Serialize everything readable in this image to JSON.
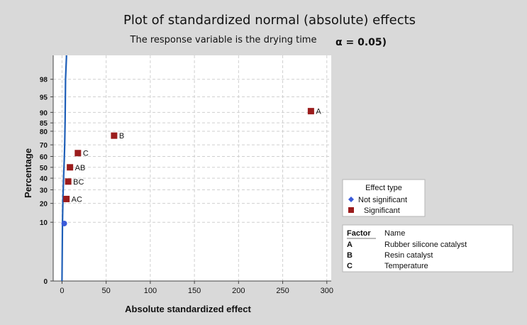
{
  "chart_data": {
    "type": "scatter",
    "title": "Plot of standardized normal (absolute) effects",
    "subtitle": "The response variable is the drying time",
    "alpha_label": "α = 0.05)",
    "xlabel": "Absolute standardized effect",
    "ylabel": "Percentage",
    "xlim": [
      -10,
      305
    ],
    "x_ticks": [
      0,
      50,
      100,
      150,
      200,
      250,
      300
    ],
    "y_ticks": [
      0,
      10,
      20,
      30,
      40,
      50,
      60,
      70,
      80,
      85,
      90,
      95,
      98
    ],
    "y_scale": "normal-probability",
    "grid": true,
    "points": [
      {
        "label": "",
        "x": 2.5,
        "y": 9.5,
        "status": "Not significant"
      },
      {
        "label": "AC",
        "x": 5,
        "y": 23,
        "status": "Significant"
      },
      {
        "label": "BC",
        "x": 7,
        "y": 37,
        "status": "Significant"
      },
      {
        "label": "AB",
        "x": 9,
        "y": 50,
        "status": "Significant"
      },
      {
        "label": "C",
        "x": 18,
        "y": 63,
        "status": "Significant"
      },
      {
        "label": "B",
        "x": 59,
        "y": 77,
        "status": "Significant"
      },
      {
        "label": "A",
        "x": 282,
        "y": 90.5,
        "status": "Significant"
      }
    ],
    "reference_line": [
      [
        0,
        0
      ],
      [
        0.5,
        10
      ],
      [
        1,
        22
      ],
      [
        1.5,
        33
      ],
      [
        2,
        45
      ],
      [
        2.5,
        57
      ],
      [
        3,
        70
      ],
      [
        3.5,
        86
      ],
      [
        4,
        98
      ],
      [
        5,
        99.5
      ]
    ],
    "colors": {
      "significant": "#9b1c1c",
      "not_significant": "#3a5bd9",
      "line": "#1f5fb8",
      "plot_bg": "#ffffff",
      "grid": "#cfcfcf"
    },
    "legend": {
      "placement": "right",
      "title": "Effect type",
      "items": [
        {
          "label": "Not significant",
          "marker": "diamond",
          "color": "#3a5bd9"
        },
        {
          "label": "Significant",
          "marker": "square",
          "color": "#9b1c1c"
        }
      ]
    },
    "factor_table": {
      "headers": [
        "Factor",
        "Name"
      ],
      "rows": [
        [
          "A",
          "Rubber silicone catalyst"
        ],
        [
          "B",
          "Resin catalyst"
        ],
        [
          "C",
          "Temperature"
        ]
      ]
    }
  }
}
